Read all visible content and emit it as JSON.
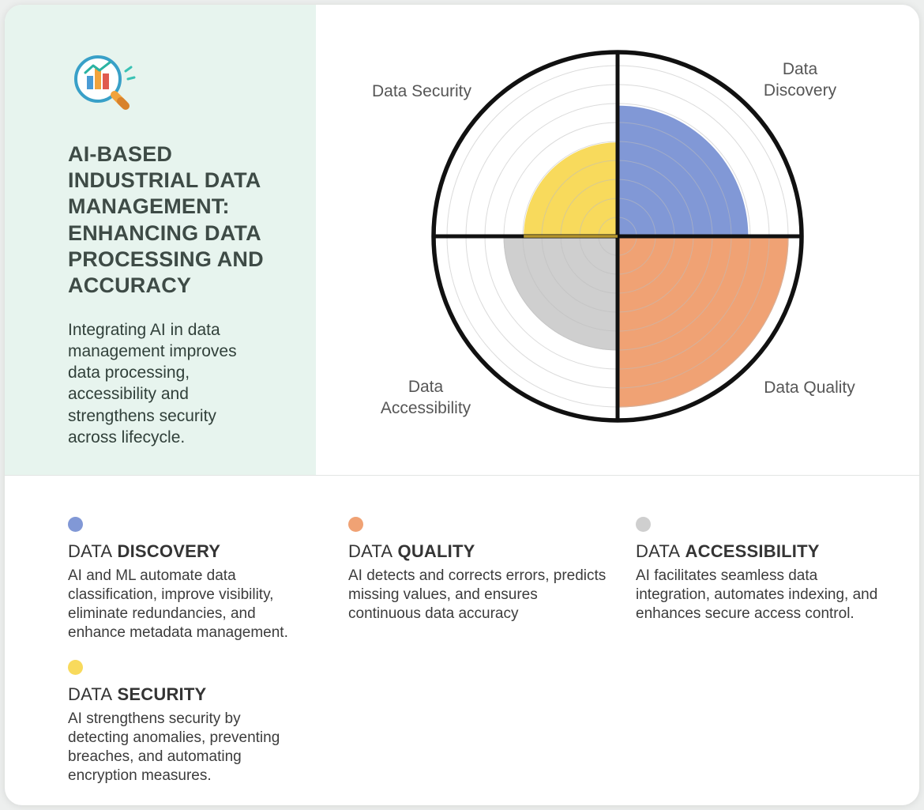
{
  "panel": {
    "icon": "magnifier-chart-icon",
    "title": "AI-BASED INDUSTRIAL DATA MANAGEMENT: ENHANCING DATA PROCESSING AND ACCURACY",
    "description": "Integrating AI in data management improves data processing, accessibility and strengthens security across lifecycle.",
    "bg_color": "#e7f4ee"
  },
  "chart_data": {
    "type": "polar-quadrant-gauge",
    "title": "",
    "categories": [
      "Data Discovery",
      "Data Quality",
      "Data Accessibility",
      "Data Security"
    ],
    "series": [
      {
        "label": "Data Discovery",
        "quadrant": "top-right",
        "value": 71,
        "color": "#8198d6"
      },
      {
        "label": "Data Quality",
        "quadrant": "bottom-right",
        "value": 93,
        "color": "#f0a274"
      },
      {
        "label": "Data Accessibility",
        "quadrant": "bottom-left",
        "value": 62,
        "color": "#cfcfcf"
      },
      {
        "label": "Data Security",
        "quadrant": "top-left",
        "value": 51,
        "color": "#f8da5c"
      }
    ],
    "value_scale": "percent of outer radius, estimated from sector extents",
    "grid_rings": 9,
    "grid_on": true,
    "axis_color": "#111111",
    "axis_accent_color": "#b5952c",
    "outer_ring_color": "#111111",
    "labels": {
      "top_left": "Data Security",
      "top_right": "Data Discovery",
      "bottom_right": "Data Quality",
      "bottom_left": "Data Accessibility"
    }
  },
  "legend": [
    {
      "prefix": "DATA",
      "name": "DISCOVERY",
      "color": "#8198d6",
      "text": "AI and ML automate data classification, improve visibility, eliminate redundancies, and enhance metadata management."
    },
    {
      "prefix": "DATA",
      "name": "QUALITY",
      "color": "#f0a274",
      "text": "AI detects and corrects errors, predicts missing values, and ensures continuous data accuracy"
    },
    {
      "prefix": "DATA",
      "name": "ACCESSIBILITY",
      "color": "#cfcfcf",
      "text": "AI facilitates seamless data integration, automates indexing, and enhances secure access control."
    },
    {
      "prefix": "DATA",
      "name": "SECURITY",
      "color": "#f8da5c",
      "text": "AI strengthens security by detecting anomalies, preventing breaches, and automating encryption measures."
    }
  ]
}
